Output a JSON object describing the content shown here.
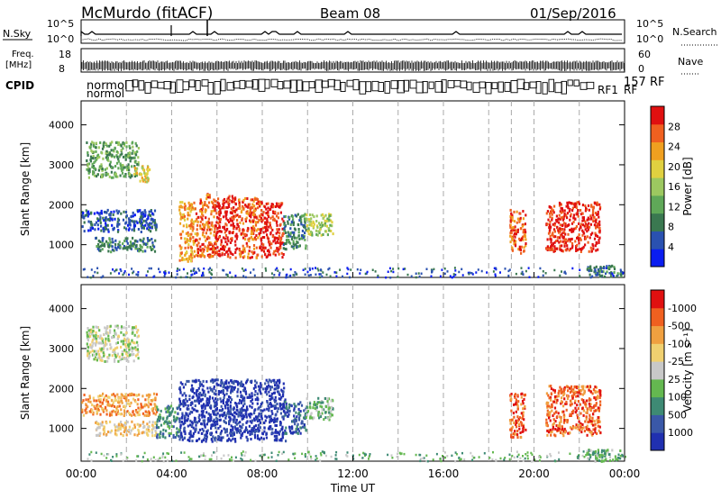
{
  "header": {
    "site": "McMurdo (fitACF)",
    "beam": "Beam 08",
    "date": "01/Sep/2016"
  },
  "strip_labels": {
    "nsky": "N.Sky",
    "nsky_ticks": [
      "10^5",
      "10^0"
    ],
    "nsearch": "N.Search",
    "nsearch_ticks": [
      "10^5",
      "10^0"
    ],
    "freq_line1": "Freq.",
    "freq_line2": "[MHz]",
    "freq_ticks": [
      "18",
      "8"
    ],
    "nave": "Nave",
    "nave_ticks": [
      "60",
      "0"
    ],
    "cpid": "CPID",
    "cpid_row1": "normol",
    "cpid_row2": "normol",
    "cpid_tail": [
      "157 RF",
      "RF1",
      "RF"
    ]
  },
  "chart_data": [
    {
      "type": "heatmap",
      "name": "power",
      "ylabel": "Slant Range [km]",
      "xlabel": "",
      "xlim": [
        0,
        24
      ],
      "ylim": [
        180,
        4600
      ],
      "yticks": [
        1000,
        2000,
        3000,
        4000
      ],
      "colorbar_label": "Power [dB]",
      "colorbar_ticks": [
        "4",
        "8",
        "12",
        "16",
        "20",
        "24",
        "28"
      ],
      "colors": [
        "#0a1df0",
        "#2a51b0",
        "#3a7850",
        "#5fa858",
        "#9cc860",
        "#e0d040",
        "#f0a020",
        "#f06020",
        "#e01010"
      ],
      "blobs": [
        {
          "t": [
            0.0,
            3.3
          ],
          "r": [
            1350,
            1900
          ],
          "level": 1
        },
        {
          "t": [
            0.6,
            3.3
          ],
          "r": [
            850,
            1200
          ],
          "level": 2
        },
        {
          "t": [
            0.2,
            2.5
          ],
          "r": [
            2700,
            3600
          ],
          "level": 3
        },
        {
          "t": [
            2.3,
            3.0
          ],
          "r": [
            2600,
            3000
          ],
          "level": 5
        },
        {
          "t": [
            4.3,
            5.0
          ],
          "r": [
            600,
            2100
          ],
          "level": 6
        },
        {
          "t": [
            5.0,
            5.9
          ],
          "r": [
            700,
            2300
          ],
          "level": 7
        },
        {
          "t": [
            5.9,
            6.9
          ],
          "r": [
            700,
            2250
          ],
          "level": 8
        },
        {
          "t": [
            6.9,
            7.9
          ],
          "r": [
            700,
            2200
          ],
          "level": 7
        },
        {
          "t": [
            7.9,
            8.9
          ],
          "r": [
            700,
            2100
          ],
          "level": 8
        },
        {
          "t": [
            8.9,
            9.9
          ],
          "r": [
            900,
            1800
          ],
          "level": 2
        },
        {
          "t": [
            9.9,
            11.1
          ],
          "r": [
            1250,
            1800
          ],
          "level": 4
        },
        {
          "t": [
            18.9,
            19.6
          ],
          "r": [
            800,
            1900
          ],
          "level": 7
        },
        {
          "t": [
            20.5,
            22.9
          ],
          "r": [
            850,
            2100
          ],
          "level": 8
        },
        {
          "t": [
            22.3,
            23.9
          ],
          "r": [
            200,
            500
          ],
          "level": 2
        }
      ]
    },
    {
      "type": "heatmap",
      "name": "velocity",
      "ylabel": "Slant Range [km]",
      "xlabel": "Time UT",
      "xlim": [
        0,
        24
      ],
      "ylim": [
        180,
        4600
      ],
      "xticks": [
        "00:00",
        "04:00",
        "08:00",
        "12:00",
        "16:00",
        "20:00",
        "00:00"
      ],
      "yticks": [
        1000,
        2000,
        3000,
        4000
      ],
      "colorbar_label": "Velocity [m s⁻¹]",
      "colorbar_ticks": [
        "1000",
        "500",
        "100",
        "25",
        "-25",
        "-100",
        "-500",
        "-1000"
      ],
      "colors": [
        "#2030b0",
        "#3a58a8",
        "#3e8a74",
        "#64b850",
        "#c8c8c8",
        "#f0d070",
        "#f0a040",
        "#f06020",
        "#e01010"
      ],
      "blobs": [
        {
          "t": [
            0.0,
            3.3
          ],
          "r": [
            1350,
            1900
          ],
          "level": 6
        },
        {
          "t": [
            0.6,
            3.3
          ],
          "r": [
            850,
            1200
          ],
          "level": 5
        },
        {
          "t": [
            0.2,
            2.5
          ],
          "r": [
            2700,
            3600
          ],
          "level": 4
        },
        {
          "t": [
            4.3,
            9.0
          ],
          "r": [
            700,
            2250
          ],
          "level": 0
        },
        {
          "t": [
            3.3,
            4.3
          ],
          "r": [
            800,
            1600
          ],
          "level": 2
        },
        {
          "t": [
            8.9,
            9.9
          ],
          "r": [
            900,
            1700
          ],
          "level": 1
        },
        {
          "t": [
            9.9,
            11.1
          ],
          "r": [
            1250,
            1800
          ],
          "level": 3
        },
        {
          "t": [
            18.9,
            19.6
          ],
          "r": [
            800,
            1900
          ],
          "level": 7
        },
        {
          "t": [
            20.5,
            22.9
          ],
          "r": [
            850,
            2100
          ],
          "level": 7
        },
        {
          "t": [
            22.3,
            23.9
          ],
          "r": [
            200,
            500
          ],
          "level": 3
        }
      ]
    }
  ]
}
